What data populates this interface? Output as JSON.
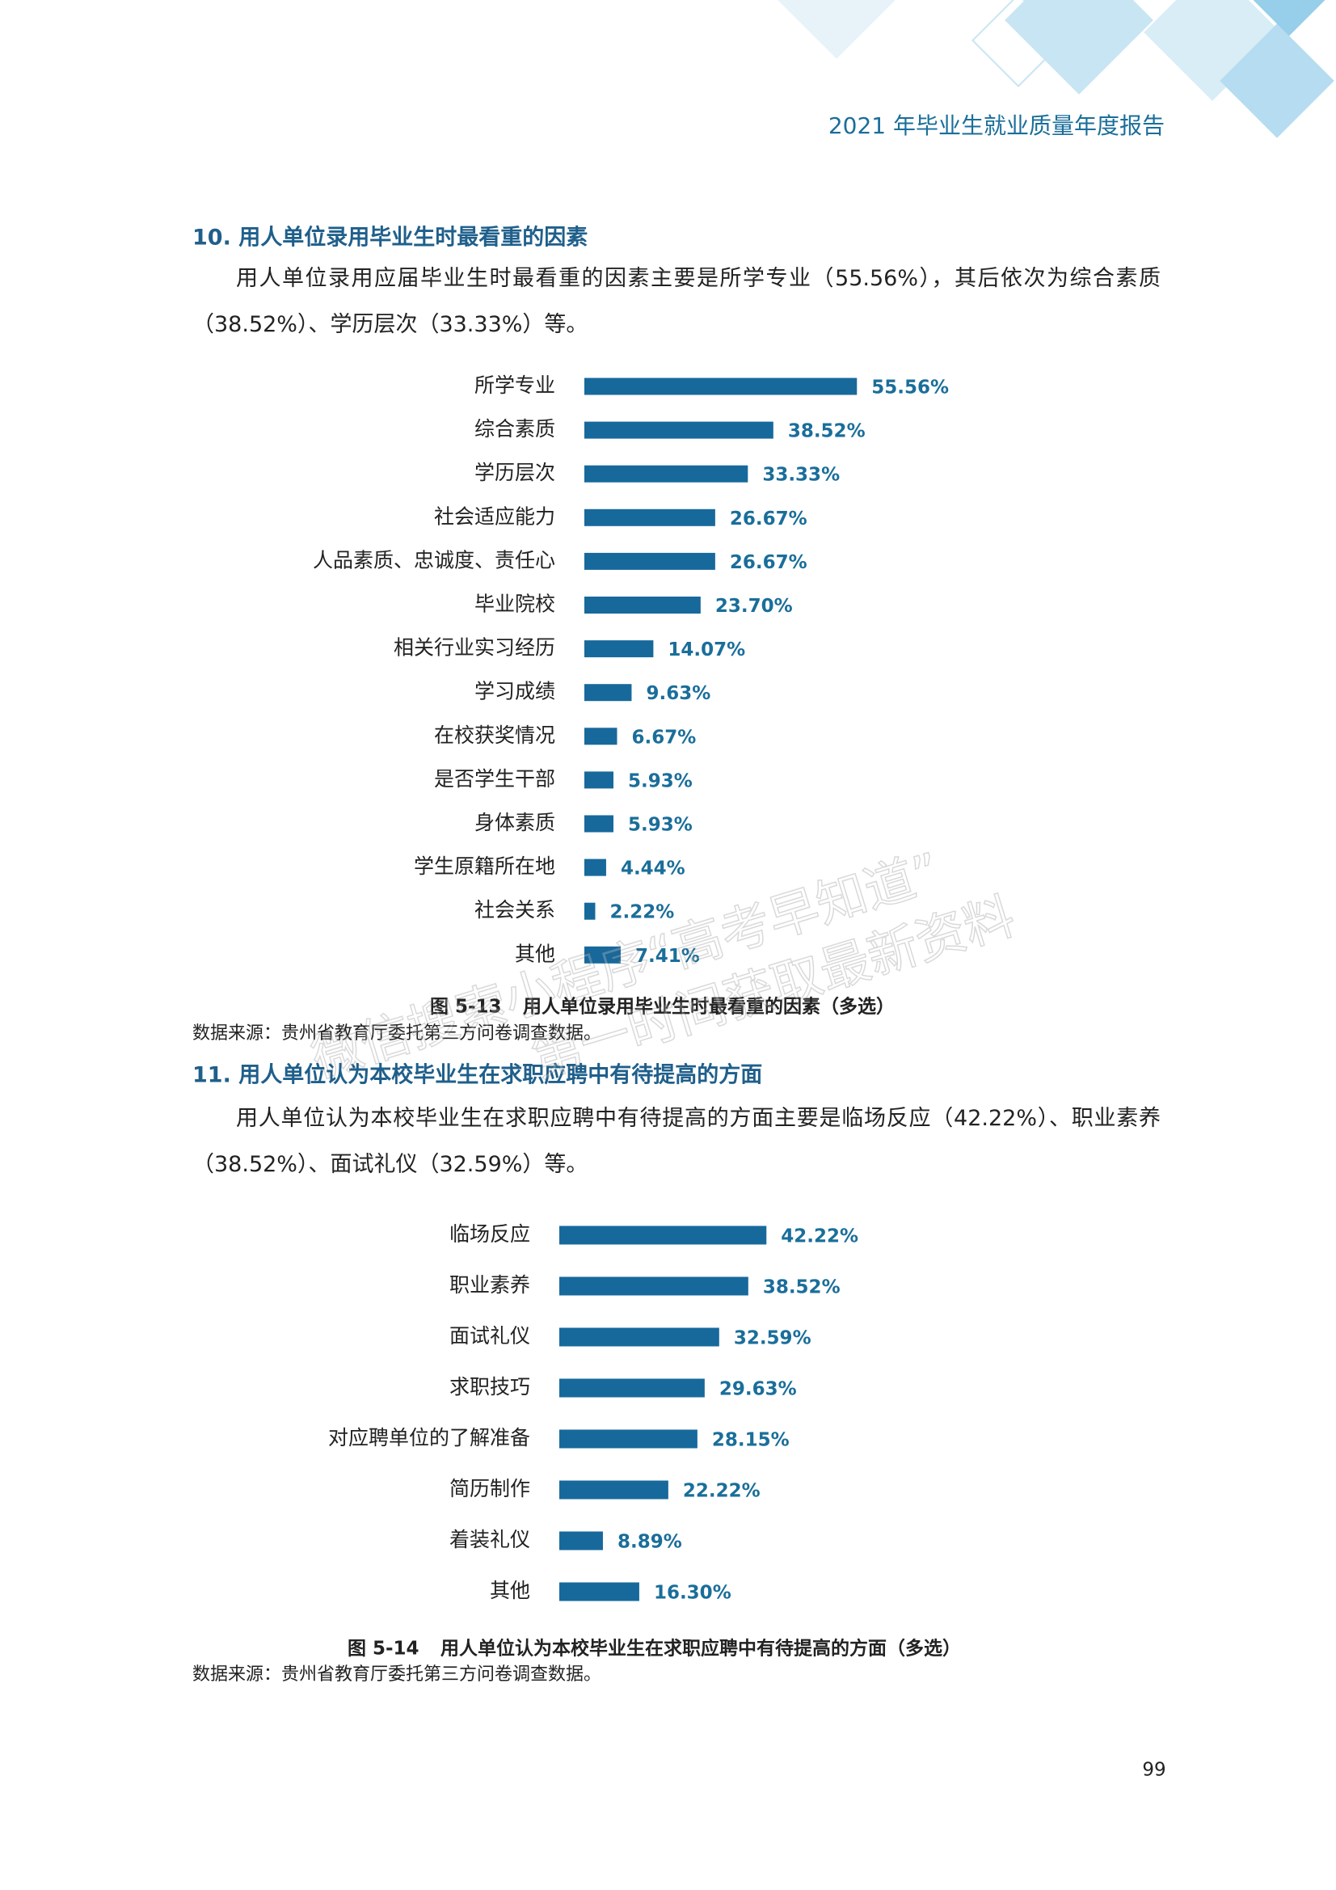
{
  "header": {
    "title": "2021 年毕业生就业质量年度报告"
  },
  "sections": [
    {
      "heading": "10.  用人单位录用毕业生时最看重的因素",
      "paragraph": "用人单位录用应届毕业生时最看重的因素主要是所学专业（55.56%），其后依次为综合素质（38.52%）、学历层次（33.33%）等。"
    },
    {
      "heading": "11.  用人单位认为本校毕业生在求职应聘中有待提高的方面",
      "paragraph": "用人单位认为本校毕业生在求职应聘中有待提高的方面主要是临场反应（42.22%）、职业素养（38.52%）、面试礼仪（32.59%）等。"
    }
  ],
  "chart_data": [
    {
      "type": "hbar",
      "figure_number": "图 5-13",
      "title": "用人单位录用毕业生时最看重的因素（多选）",
      "source": "数据来源：贵州省教育厅委托第三方问卷调查数据。",
      "color": "#17699c",
      "categories": [
        "所学专业",
        "综合素质",
        "学历层次",
        "社会适应能力",
        "人品素质、忠诚度、责任心",
        "毕业院校",
        "相关行业实习经历",
        "学习成绩",
        "在校获奖情况",
        "是否学生干部",
        "身体素质",
        "学生原籍所在地",
        "社会关系",
        "其他"
      ],
      "values": [
        55.56,
        38.52,
        33.33,
        26.67,
        26.67,
        23.7,
        14.07,
        9.63,
        6.67,
        5.93,
        5.93,
        4.44,
        2.22,
        7.41
      ],
      "value_labels": [
        "55.56%",
        "38.52%",
        "33.33%",
        "26.67%",
        "26.67%",
        "23.70%",
        "14.07%",
        "9.63%",
        "6.67%",
        "5.93%",
        "5.93%",
        "4.44%",
        "2.22%",
        "7.41%"
      ]
    },
    {
      "type": "hbar",
      "figure_number": "图 5-14",
      "title": "用人单位认为本校毕业生在求职应聘中有待提高的方面（多选）",
      "source": "数据来源：贵州省教育厅委托第三方问卷调查数据。",
      "color": "#17699c",
      "categories": [
        "临场反应",
        "职业素养",
        "面试礼仪",
        "求职技巧",
        "对应聘单位的了解准备",
        "简历制作",
        "着装礼仪",
        "其他"
      ],
      "values": [
        42.22,
        38.52,
        32.59,
        29.63,
        28.15,
        22.22,
        8.89,
        16.3
      ],
      "value_labels": [
        "42.22%",
        "38.52%",
        "32.59%",
        "29.63%",
        "28.15%",
        "22.22%",
        "8.89%",
        "16.30%"
      ]
    }
  ],
  "watermark": [
    "微信搜索小程序“高考早知道”",
    "第一时间获取最新资料"
  ],
  "page_number": "99"
}
